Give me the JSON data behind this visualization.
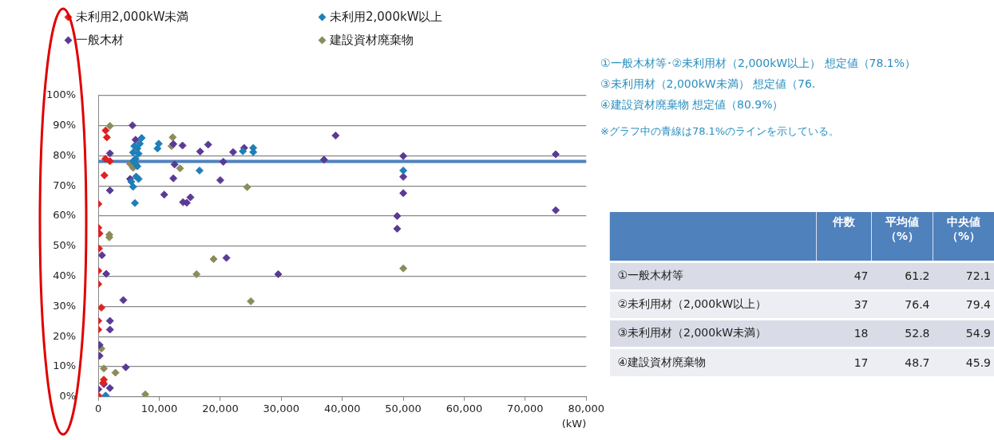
{
  "chart_data": [
    {
      "type": "scatter",
      "marker": "diamond",
      "grid": "y",
      "legend": "top",
      "xlabel": "(kW)",
      "xlim": [
        0,
        80000
      ],
      "xticks": [
        {
          "value": 0,
          "label": "0"
        },
        {
          "value": 10000,
          "label": "10,000"
        },
        {
          "value": 20000,
          "label": "20,000"
        },
        {
          "value": 30000,
          "label": "30,000"
        },
        {
          "value": 40000,
          "label": "40,000"
        },
        {
          "value": 50000,
          "label": "50,000"
        },
        {
          "value": 60000,
          "label": "60,000"
        },
        {
          "value": 70000,
          "label": "70,000"
        },
        {
          "value": 80000,
          "label": "80,000"
        }
      ],
      "ylim": [
        0,
        100
      ],
      "yticks": [
        {
          "value": 0,
          "label": "0%"
        },
        {
          "value": 10,
          "label": "10%"
        },
        {
          "value": 20,
          "label": "20%"
        },
        {
          "value": 30,
          "label": "30%"
        },
        {
          "value": 40,
          "label": "40%"
        },
        {
          "value": 50,
          "label": "50%"
        },
        {
          "value": 60,
          "label": "60%"
        },
        {
          "value": 70,
          "label": "70%"
        },
        {
          "value": 80,
          "label": "80%"
        },
        {
          "value": 90,
          "label": "90%"
        },
        {
          "value": 100,
          "label": "100%"
        }
      ],
      "series": [
        {
          "name": "未利用2,000kW未満",
          "color": "#e02020",
          "x": [
            1200,
            1400,
            1900,
            1150,
            1000,
            0,
            0,
            200,
            100,
            0,
            0,
            500,
            0,
            0,
            900,
            800,
            0
          ],
          "values": [
            88.4,
            86.1,
            78.2,
            79,
            73.5,
            64,
            56.1,
            54.2,
            49.2,
            41.8,
            37.4,
            29.6,
            25.2,
            22.3,
            5.7,
            4.6,
            0.4
          ]
        },
        {
          "name": "未利用2,000kW以上",
          "color": "#1f7fb8",
          "x": [
            1200,
            7100,
            5900,
            6400,
            5700,
            6600,
            6100,
            5700,
            6400,
            6600,
            5700,
            6000,
            9900,
            9700,
            6800,
            6100,
            5400,
            6200,
            16600,
            23700,
            25400,
            25400,
            50000
          ],
          "values": [
            0.4,
            85.9,
            83.2,
            82.4,
            81.1,
            80.7,
            79,
            78.2,
            76.5,
            72.3,
            69.7,
            64.3,
            84,
            82.4,
            84,
            77.3,
            71.4,
            73.1,
            75.1,
            81.5,
            82.6,
            81.2,
            75.1
          ]
        },
        {
          "name": "一般木材",
          "color": "#5b3a95",
          "x": [
            5600,
            6100,
            1900,
            5200,
            1900,
            600,
            1300,
            4100,
            1900,
            1900,
            200,
            200,
            4500,
            900,
            1900,
            0,
            12300,
            13800,
            12500,
            12300,
            10800,
            13900,
            16700,
            18000,
            20500,
            20000,
            14500,
            15100,
            22100,
            23900,
            38900,
            37000,
            21000,
            29500,
            50000,
            50000,
            50000,
            49000,
            49000,
            75000,
            75000
          ],
          "values": [
            90.1,
            85.3,
            80.8,
            72.3,
            68.5,
            47,
            40.8,
            32.1,
            25.2,
            22.3,
            17.2,
            13.6,
            9.8,
            4.2,
            2.9,
            2.5,
            83.9,
            83.4,
            77.1,
            72.5,
            67.1,
            64.6,
            81.4,
            83.7,
            78,
            71.9,
            64.4,
            66.2,
            81.2,
            82.6,
            86.7,
            78.7,
            46.1,
            40.7,
            79.9,
            73,
            67.6,
            60,
            55.8,
            80.5,
            61.9
          ]
        },
        {
          "name": "建設資材廃棄物",
          "color": "#8b8c5a",
          "x": [
            1900,
            5700,
            5200,
            1800,
            1800,
            500,
            900,
            2800,
            7700,
            12200,
            12000,
            13400,
            24400,
            18900,
            16100,
            25000,
            50000
          ],
          "values": [
            89.9,
            76,
            77.3,
            53.8,
            52.9,
            16,
            9.4,
            8,
            0.8,
            86.1,
            83.2,
            75.8,
            69.6,
            45.7,
            40.7,
            31.7,
            42.6
          ]
        }
      ],
      "ref_lines": [
        {
          "axis": "y",
          "value": 78.1,
          "color": "#4f81bd"
        }
      ],
      "annotations": [
        "①一般木材等･②未利用材（2,000kW以上） 想定値（78.1%）",
        "③未利用材（2,000kW未満） 想定値（76.",
        "④建設資材廃棄物 想定値（80.9%）",
        "※グラフ中の青線は78.1%のラインを示している。"
      ]
    },
    {
      "type": "heatmap",
      "data_labels": true,
      "categories": [
        "件数",
        "平均値（%）",
        "中央値（%）"
      ],
      "y_categories": [
        "①一般木材等",
        "②未利用材（2,000kW以上）",
        "③未利用材（2,000kW未満）",
        "④建設資材廃棄物"
      ],
      "cells": [
        [
          47,
          61.2,
          72.1
        ],
        [
          37,
          76.4,
          79.4
        ],
        [
          18,
          52.8,
          54.9
        ],
        [
          17,
          48.7,
          45.9
        ]
      ]
    }
  ]
}
